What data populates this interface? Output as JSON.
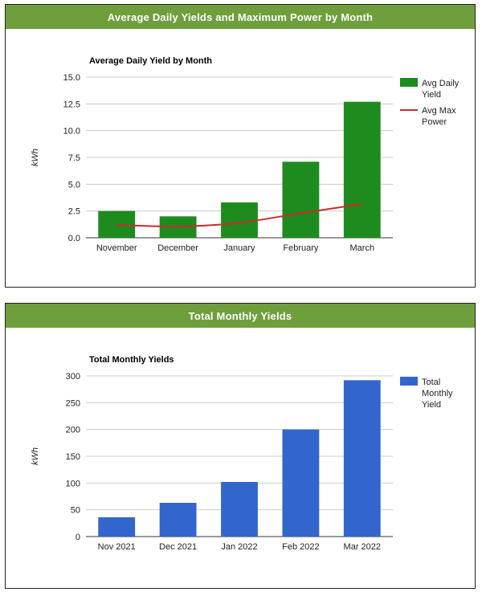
{
  "panels": [
    {
      "header": "Average Daily Yields and Maximum Power by Month"
    },
    {
      "header": "Total Monthly Yields"
    }
  ],
  "chart_data": [
    {
      "type": "bar",
      "title": "Average Daily Yield by Month",
      "ylabel": "kWh",
      "xlabel": "",
      "ylim": [
        0,
        15
      ],
      "yticks": [
        "15.0",
        "12.5",
        "10.0",
        "7.5",
        "5.0",
        "2.5",
        "0.0"
      ],
      "categories": [
        "November",
        "December",
        "January",
        "February",
        "March"
      ],
      "series": [
        {
          "name": "Avg Daily Yield",
          "kind": "bar",
          "color": "#1e8b1e",
          "values": [
            2.5,
            2.0,
            3.3,
            7.1,
            12.7
          ]
        },
        {
          "name": "Avg Max Power",
          "kind": "line",
          "color": "#cc2b2b",
          "values": [
            1.2,
            1.05,
            1.4,
            2.3,
            3.15
          ]
        }
      ],
      "legend_lines": [
        [
          "Avg Daily",
          "Yield"
        ],
        [
          "Avg Max",
          "Power"
        ]
      ],
      "grid": true,
      "legend": "right"
    },
    {
      "type": "bar",
      "title": "Total Monthly Yields",
      "ylabel": "kWh",
      "xlabel": "",
      "ylim": [
        0,
        300
      ],
      "yticks": [
        "300",
        "250",
        "200",
        "150",
        "100",
        "50",
        "0"
      ],
      "categories": [
        "Nov 2021",
        "Dec 2021",
        "Jan 2022",
        "Feb 2022",
        "Mar 2022"
      ],
      "series": [
        {
          "name": "Total Monthly Yield",
          "kind": "bar",
          "color": "#3366cc",
          "values": [
            36,
            63,
            102,
            200,
            292
          ]
        }
      ],
      "legend_lines": [
        [
          "Total",
          "Monthly",
          "Yield"
        ]
      ],
      "grid": true,
      "legend": "right"
    }
  ]
}
